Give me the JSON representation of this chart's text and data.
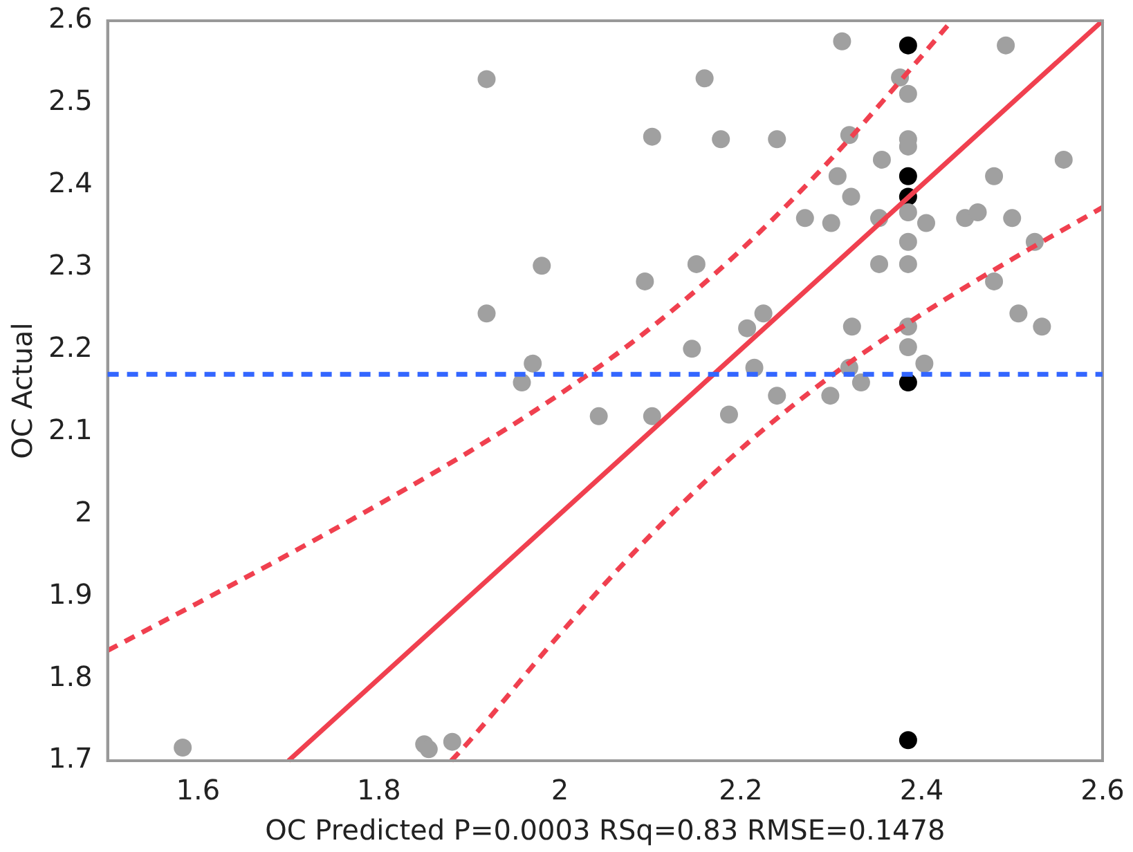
{
  "chart_data": {
    "type": "scatter",
    "xlabel": "OC Predicted P=0.0003 RSq=0.83 RMSE=0.1478",
    "ylabel": "OC Actual",
    "xlim": [
      1.5,
      2.6
    ],
    "xticks": [
      1.6,
      1.8,
      2,
      2.2,
      2.4,
      2.6
    ],
    "ylim": [
      1.7,
      2.6
    ],
    "yticks": [
      1.7,
      1.8,
      1.9,
      2,
      2.1,
      2.2,
      2.3,
      2.4,
      2.5,
      2.6
    ],
    "grid": false,
    "legend": false,
    "marker": "circle",
    "ref_lines": [
      {
        "axis": "y",
        "value": 2.17,
        "color": "#3366ff",
        "line_style": "dashed"
      }
    ],
    "series": [
      {
        "type": "scatter",
        "color": "#a0a0a0",
        "x": [
          1.919,
          2.16,
          2.102,
          2.178,
          1.98,
          2.094,
          2.151,
          1.919,
          2.146,
          1.97,
          1.958,
          2.043,
          2.102,
          2.353,
          2.385,
          2.48,
          2.507,
          2.533,
          2.207,
          2.225,
          2.323,
          2.385,
          2.385,
          2.403,
          2.215,
          2.32,
          2.333,
          2.24,
          2.299,
          2.187,
          2.312,
          2.493,
          2.376,
          2.385,
          2.24,
          2.32,
          2.385,
          2.385,
          2.356,
          2.557,
          2.307,
          2.48,
          2.322,
          2.271,
          2.3,
          2.353,
          2.385,
          2.405,
          2.448,
          2.462,
          2.5,
          2.525,
          2.385,
          1.583,
          1.85,
          1.855,
          1.881
        ],
        "values": [
          2.529,
          2.53,
          2.459,
          2.456,
          2.302,
          2.283,
          2.304,
          2.244,
          2.201,
          2.183,
          2.16,
          2.119,
          2.119,
          2.304,
          2.304,
          2.283,
          2.244,
          2.228,
          2.226,
          2.244,
          2.228,
          2.228,
          2.203,
          2.183,
          2.178,
          2.178,
          2.16,
          2.144,
          2.144,
          2.121,
          2.575,
          2.57,
          2.531,
          2.511,
          2.456,
          2.461,
          2.456,
          2.447,
          2.431,
          2.431,
          2.411,
          2.411,
          2.386,
          2.36,
          2.354,
          2.36,
          2.367,
          2.354,
          2.36,
          2.367,
          2.36,
          2.331,
          2.331,
          1.716,
          1.72,
          1.714,
          1.723
        ]
      },
      {
        "type": "scatter",
        "color": "#000000",
        "x": [
          2.385,
          2.385,
          2.385,
          2.385,
          2.385
        ],
        "values": [
          2.57,
          2.411,
          2.386,
          2.16,
          1.725
        ]
      },
      {
        "type": "line",
        "color": "#f0404f",
        "line_style": "solid",
        "marker": "none",
        "x": [
          1.7,
          2.6
        ],
        "values": [
          1.7,
          2.6
        ]
      },
      {
        "type": "line",
        "color": "#f0404f",
        "line_style": "dashed",
        "marker": "none",
        "x": [
          1.5,
          1.6,
          1.7,
          1.8,
          1.9,
          2.0,
          2.1,
          2.2,
          2.3,
          2.4,
          2.43
        ],
        "values": [
          1.834,
          1.892,
          1.951,
          2.012,
          2.076,
          2.146,
          2.226,
          2.321,
          2.432,
          2.557,
          2.596
        ]
      },
      {
        "type": "line",
        "color": "#f0404f",
        "line_style": "dashed",
        "marker": "none",
        "x": [
          1.88,
          1.9,
          2.0,
          2.1,
          2.2,
          2.3,
          2.4,
          2.5,
          2.6
        ],
        "values": [
          1.7,
          1.724,
          1.854,
          1.974,
          2.079,
          2.168,
          2.243,
          2.31,
          2.373
        ]
      }
    ]
  }
}
